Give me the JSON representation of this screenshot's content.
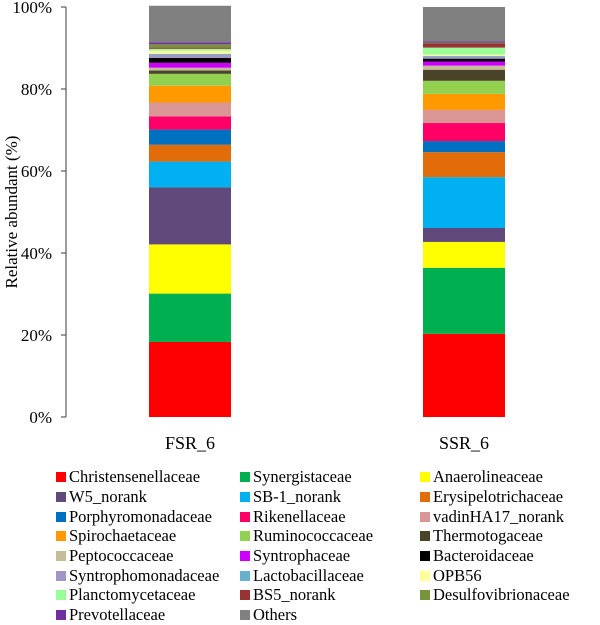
{
  "chart_data": {
    "type": "bar",
    "stacked": true,
    "title": "",
    "xlabel": "",
    "ylabel": "Relative abundant (%)",
    "ylim": [
      0,
      100
    ],
    "yticks": [
      "0%",
      "20%",
      "40%",
      "60%",
      "80%",
      "100%"
    ],
    "ytick_values": [
      0,
      20,
      40,
      60,
      80,
      100
    ],
    "grid": false,
    "legend_position": "bottom",
    "categories": [
      "FSR_6",
      "SSR_6"
    ],
    "series": [
      {
        "name": "Christensenellaceae",
        "color": "#ff0000",
        "values": [
          18.3,
          20.3
        ]
      },
      {
        "name": "Synergistaceae",
        "color": "#00b050",
        "values": [
          11.8,
          16.1
        ]
      },
      {
        "name": "Anaerolineaceae",
        "color": "#ffff00",
        "values": [
          12.0,
          6.3
        ]
      },
      {
        "name": "W5_norank",
        "color": "#604a7b",
        "values": [
          13.9,
          3.4
        ]
      },
      {
        "name": "SB-1_norank",
        "color": "#00b0f0",
        "values": [
          6.3,
          12.4
        ]
      },
      {
        "name": "Erysipelotrichaceae",
        "color": "#e36c0a",
        "values": [
          4.1,
          6.1
        ]
      },
      {
        "name": "Porphyromonadaceae",
        "color": "#0070c0",
        "values": [
          3.7,
          2.7
        ]
      },
      {
        "name": "Rikenellaceae",
        "color": "#ff0066",
        "values": [
          3.2,
          4.4
        ]
      },
      {
        "name": "vadinHA17_norank",
        "color": "#da9694",
        "values": [
          3.4,
          3.2
        ]
      },
      {
        "name": "Spirochaetaceae",
        "color": "#ff9900",
        "values": [
          4.1,
          3.9
        ]
      },
      {
        "name": "Ruminococcaceae",
        "color": "#92d050",
        "values": [
          2.9,
          3.2
        ]
      },
      {
        "name": "Thermotogaceae",
        "color": "#494429",
        "values": [
          0.8,
          2.7
        ]
      },
      {
        "name": "Peptococcaceae",
        "color": "#c4bd97",
        "values": [
          0.7,
          1.0
        ]
      },
      {
        "name": "Syntrophaceae",
        "color": "#cc00ff",
        "values": [
          1.2,
          1.0
        ]
      },
      {
        "name": "Bacteroidaceae",
        "color": "#000000",
        "values": [
          1.2,
          0.7
        ]
      },
      {
        "name": "Syntrophomonadaceae",
        "color": "#a095c4",
        "values": [
          0.8,
          0.5
        ]
      },
      {
        "name": "Lactobacillaceae",
        "color": "#66b2cc",
        "values": [
          0.2,
          0.2
        ]
      },
      {
        "name": "OPB56",
        "color": "#ffff99",
        "values": [
          0.7,
          0.3
        ]
      },
      {
        "name": "Planctomycetaceae",
        "color": "#99ff99",
        "values": [
          0.5,
          1.7
        ]
      },
      {
        "name": "BS5_norank",
        "color": "#993333",
        "values": [
          0.3,
          1.0
        ]
      },
      {
        "name": "Desulfovibrionaceae",
        "color": "#77933c",
        "values": [
          0.8,
          0.2
        ]
      },
      {
        "name": "Prevotellaceae",
        "color": "#7030a0",
        "values": [
          0.5,
          0.3
        ]
      },
      {
        "name": "Others",
        "color": "#808080",
        "values": [
          8.9,
          8.4
        ]
      }
    ]
  }
}
